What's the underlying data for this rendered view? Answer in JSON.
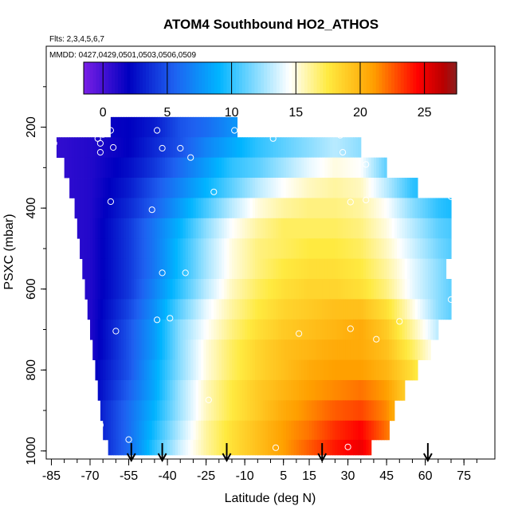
{
  "chart_data": {
    "type": "heatmap",
    "title": "ATOM4 Southbound HO2_ATHOS",
    "flights_note": "Flts: 2,3,4,5,6,7",
    "dates_note": "MMDD: 0427,0429,0501,0503,0506,0509",
    "xlabel": "Latitude (deg N)",
    "ylabel": "PSXC (mbar)",
    "xlim": [
      -87,
      87
    ],
    "ylim": [
      1020,
      0
    ],
    "x_tick_labels": [
      "-85",
      "-70",
      "-55",
      "-40",
      "-25",
      "-10",
      "5",
      "15",
      "30",
      "45",
      "60",
      "75"
    ],
    "x_tick_values": [
      -85,
      -70,
      -55,
      -40,
      -25,
      -10,
      5,
      15,
      30,
      45,
      60,
      75
    ],
    "y_tick_labels": [
      "200",
      "400",
      "600",
      "800",
      "1000"
    ],
    "y_tick_values": [
      200,
      400,
      600,
      800,
      1000
    ],
    "colorbar": {
      "min": -1.5,
      "max": 27.5,
      "tick_values": [
        0,
        5,
        10,
        15,
        20,
        25
      ],
      "tick_labels": [
        "0",
        "5",
        "10",
        "15",
        "20",
        "25"
      ],
      "colors": [
        "#7a1fe6",
        "#0000c0",
        "#1e60f0",
        "#00b4ff",
        "#ffffff",
        "#ffea40",
        "#ffa000",
        "#ff0000",
        "#b80000",
        "#8b2020"
      ],
      "stops": [
        -1.5,
        2.0,
        5.5,
        9.0,
        14.5,
        17.5,
        21.0,
        24.5,
        26.5,
        27.5
      ]
    },
    "layers": [
      {
        "pressure": 200,
        "lat_min": -62,
        "lat_max": -13
      },
      {
        "pressure": 250,
        "lat_min": -83,
        "lat_max": 35
      },
      {
        "pressure": 300,
        "lat_min": -80,
        "lat_max": 45
      },
      {
        "pressure": 350,
        "lat_min": -78,
        "lat_max": 57
      },
      {
        "pressure": 400,
        "lat_min": -76,
        "lat_max": 70
      },
      {
        "pressure": 450,
        "lat_min": -75,
        "lat_max": 70
      },
      {
        "pressure": 500,
        "lat_min": -74,
        "lat_max": 70
      },
      {
        "pressure": 550,
        "lat_min": -73,
        "lat_max": 68
      },
      {
        "pressure": 600,
        "lat_min": -72,
        "lat_max": 70
      },
      {
        "pressure": 650,
        "lat_min": -71,
        "lat_max": 70
      },
      {
        "pressure": 700,
        "lat_min": -70,
        "lat_max": 65
      },
      {
        "pressure": 750,
        "lat_min": -69,
        "lat_max": 62
      },
      {
        "pressure": 800,
        "lat_min": -68,
        "lat_max": 57
      },
      {
        "pressure": 850,
        "lat_min": -67,
        "lat_max": 52
      },
      {
        "pressure": 900,
        "lat_min": -66,
        "lat_max": 48
      },
      {
        "pressure": 950,
        "lat_min": -65,
        "lat_max": 46
      },
      {
        "pressure": 995,
        "lat_min": -63,
        "lat_max": 39
      }
    ],
    "field": {
      "lat_knots": [
        -85,
        -70,
        -55,
        -45,
        -35,
        -25,
        -15,
        -5,
        5,
        15,
        25,
        35,
        45,
        55,
        65,
        75
      ],
      "pressure_levels": [
        200,
        250,
        300,
        350,
        400,
        450,
        500,
        550,
        600,
        650,
        700,
        750,
        800,
        850,
        900,
        950,
        995
      ],
      "values": [
        [
          1,
          1.5,
          2,
          3,
          5,
          6,
          7.5,
          9,
          10,
          11,
          11,
          10,
          9,
          8,
          7,
          6
        ],
        [
          0.5,
          1,
          2,
          3.5,
          5,
          7,
          8.5,
          10,
          11,
          12,
          13,
          12,
          9,
          8,
          7,
          6
        ],
        [
          0.5,
          1,
          2.5,
          4,
          6,
          8,
          10,
          11,
          12.5,
          14,
          15,
          14.5,
          11,
          9,
          8,
          7
        ],
        [
          0.5,
          1,
          3,
          5,
          7,
          9,
          11,
          13,
          14.5,
          15.5,
          16,
          15.5,
          13,
          10,
          9,
          8
        ],
        [
          0.5,
          1,
          3.5,
          5.5,
          8,
          10.5,
          13,
          15,
          16,
          16.5,
          16.5,
          16,
          14.5,
          12,
          10,
          9
        ],
        [
          0.5,
          1,
          4,
          6.5,
          9,
          12,
          14.5,
          16,
          17,
          17,
          17,
          16.5,
          15,
          13,
          11,
          10
        ],
        [
          0.5,
          1,
          4,
          6.5,
          9.5,
          12.5,
          15,
          16.5,
          17,
          17.5,
          17.5,
          17,
          15.5,
          13.5,
          11.5,
          10
        ],
        [
          0.5,
          1,
          4,
          6.5,
          9.5,
          12.5,
          15,
          16.5,
          17.5,
          18,
          18,
          17.5,
          16,
          14,
          12,
          10
        ],
        [
          0.5,
          1,
          4,
          7,
          10,
          13,
          15.5,
          17,
          18,
          18.5,
          18.5,
          18,
          16.5,
          14,
          12,
          10
        ],
        [
          0.5,
          1,
          4.5,
          7.5,
          11,
          14,
          16,
          17.5,
          18.5,
          19,
          19.5,
          19.5,
          18,
          15,
          12,
          10
        ],
        [
          0.5,
          1,
          5,
          8,
          12,
          14.5,
          16.5,
          18,
          19,
          19.5,
          20,
          20.5,
          19,
          16,
          13,
          11
        ],
        [
          0.5,
          1,
          5,
          8,
          12,
          15,
          17,
          18.5,
          19.5,
          20,
          20.5,
          20.5,
          19.5,
          17,
          14,
          12
        ],
        [
          0.5,
          1.5,
          5,
          8.5,
          12,
          15,
          17,
          18.5,
          19.5,
          20.5,
          21,
          21,
          20,
          18,
          15,
          12
        ],
        [
          0.5,
          1.5,
          5.5,
          8.5,
          12.5,
          15.5,
          17.5,
          19,
          20,
          21,
          21.5,
          22,
          21,
          18,
          15,
          12
        ],
        [
          0.5,
          2,
          6,
          9,
          12.5,
          15.5,
          17.5,
          19,
          20.5,
          21.5,
          22.5,
          23,
          21.5,
          18,
          15,
          12
        ],
        [
          0.5,
          2,
          6,
          9.5,
          13,
          16,
          18,
          19.5,
          21,
          22,
          23.5,
          24.5,
          22,
          19,
          15,
          12
        ],
        [
          0.5,
          2,
          6,
          10,
          13.5,
          16,
          18,
          19.5,
          21,
          22.5,
          24,
          25,
          22,
          19,
          15,
          12
        ]
      ]
    },
    "markers": [
      {
        "lat": -62,
        "p": 208
      },
      {
        "lat": -44,
        "p": 208
      },
      {
        "lat": -14,
        "p": 208
      },
      {
        "lat": 1,
        "p": 228
      },
      {
        "lat": 27,
        "p": 220
      },
      {
        "lat": -84,
        "p": 240
      },
      {
        "lat": -67,
        "p": 228
      },
      {
        "lat": -66,
        "p": 240
      },
      {
        "lat": -65,
        "p": 218
      },
      {
        "lat": -61,
        "p": 250
      },
      {
        "lat": -42,
        "p": 252
      },
      {
        "lat": -35,
        "p": 252
      },
      {
        "lat": -31,
        "p": 275
      },
      {
        "lat": -66,
        "p": 262
      },
      {
        "lat": 28,
        "p": 262
      },
      {
        "lat": 37,
        "p": 292
      },
      {
        "lat": -22,
        "p": 360
      },
      {
        "lat": -62,
        "p": 384
      },
      {
        "lat": -46,
        "p": 404
      },
      {
        "lat": 70,
        "p": 372
      },
      {
        "lat": 31,
        "p": 385
      },
      {
        "lat": 37,
        "p": 380
      },
      {
        "lat": -42,
        "p": 560
      },
      {
        "lat": -33,
        "p": 560
      },
      {
        "lat": 70,
        "p": 626
      },
      {
        "lat": -44,
        "p": 676
      },
      {
        "lat": -39,
        "p": 672
      },
      {
        "lat": -75,
        "p": 702
      },
      {
        "lat": -60,
        "p": 704
      },
      {
        "lat": 11,
        "p": 710
      },
      {
        "lat": 31,
        "p": 698
      },
      {
        "lat": 41,
        "p": 724
      },
      {
        "lat": 50,
        "p": 680
      },
      {
        "lat": -24,
        "p": 874
      },
      {
        "lat": -66,
        "p": 936
      },
      {
        "lat": -55,
        "p": 972
      },
      {
        "lat": 2,
        "p": 992
      },
      {
        "lat": 30,
        "p": 990
      }
    ],
    "arrows": [
      -54,
      -42,
      -17,
      20,
      61
    ]
  }
}
